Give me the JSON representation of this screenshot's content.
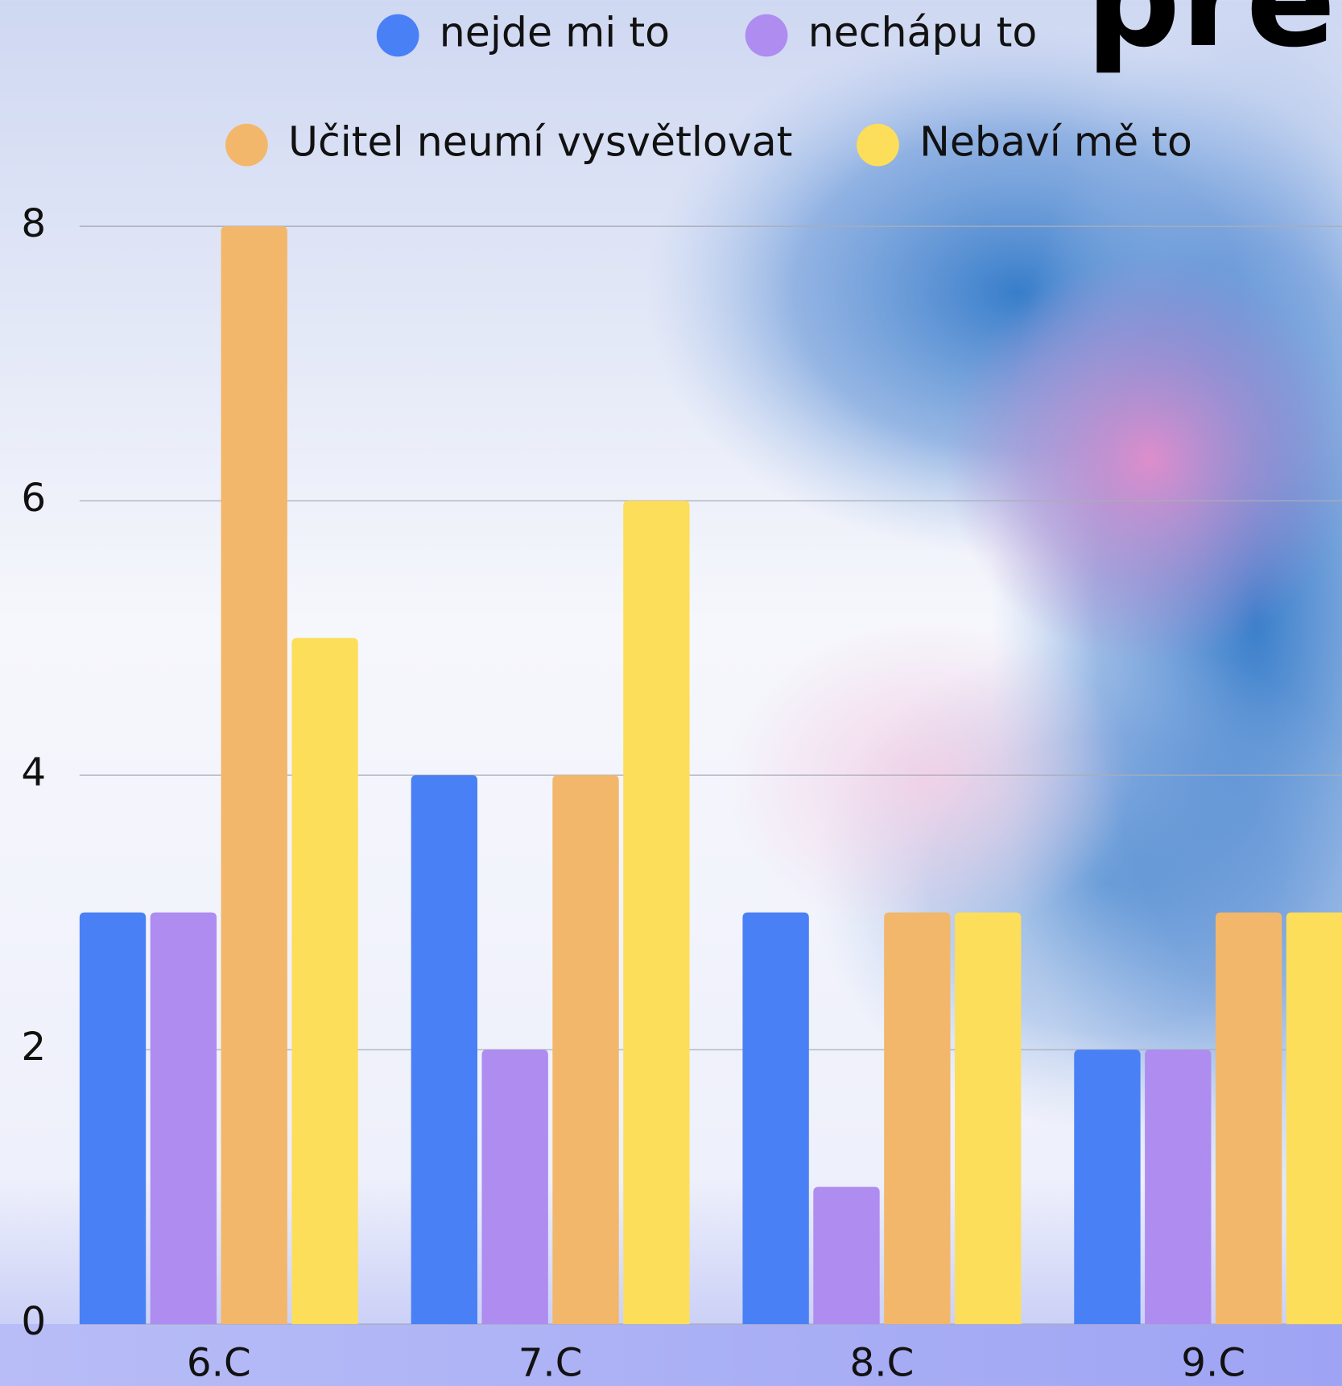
{
  "chart_data": {
    "type": "bar",
    "title": "pre",
    "categories": [
      "6.C",
      "7.C",
      "8.C",
      "9.C"
    ],
    "series": [
      {
        "name": "nejde mi to",
        "color": "#4a80f5",
        "values": [
          3,
          4,
          3,
          2
        ]
      },
      {
        "name": "nechápu to",
        "color": "#ae8cf0",
        "values": [
          3,
          2,
          1,
          2
        ]
      },
      {
        "name": "Učitel neumí vysvětlovat",
        "color": "#f2b76b",
        "values": [
          8,
          4,
          3,
          3
        ]
      },
      {
        "name": "Nebaví mě to",
        "color": "#fdde5a",
        "values": [
          5,
          6,
          3,
          3
        ]
      }
    ],
    "ylim": [
      0,
      8
    ],
    "yticks": [
      0,
      2,
      4,
      6,
      8
    ],
    "grid": true,
    "legend": "top"
  }
}
